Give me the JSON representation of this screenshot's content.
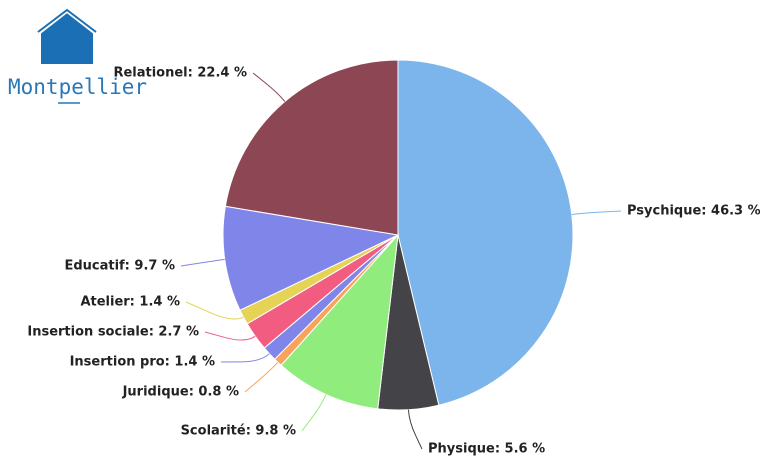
{
  "logo": {
    "text": "Montpellier"
  },
  "chart_data": {
    "type": "pie",
    "values": [
      46.3,
      5.6,
      9.8,
      0.8,
      1.4,
      2.7,
      1.4,
      9.7,
      22.4
    ],
    "value_labels": [
      "Psychique: 46.3 %",
      "Physique: 5.6 %",
      "Scolarité: 9.8 %",
      "Juridique: 0.8 %",
      "Insertion pro: 1.4 %",
      "Insertion sociale: 2.7 %",
      "Atelier: 1.4 %",
      "Educatif: 9.7 %",
      "Relationel: 22.4 %"
    ],
    "colors": [
      "#7cb5ec",
      "#434348",
      "#90ed7d",
      "#f7a35c",
      "#8085e9",
      "#f15c80",
      "#e4d354",
      "#8085e9",
      "#8d4654"
    ]
  }
}
